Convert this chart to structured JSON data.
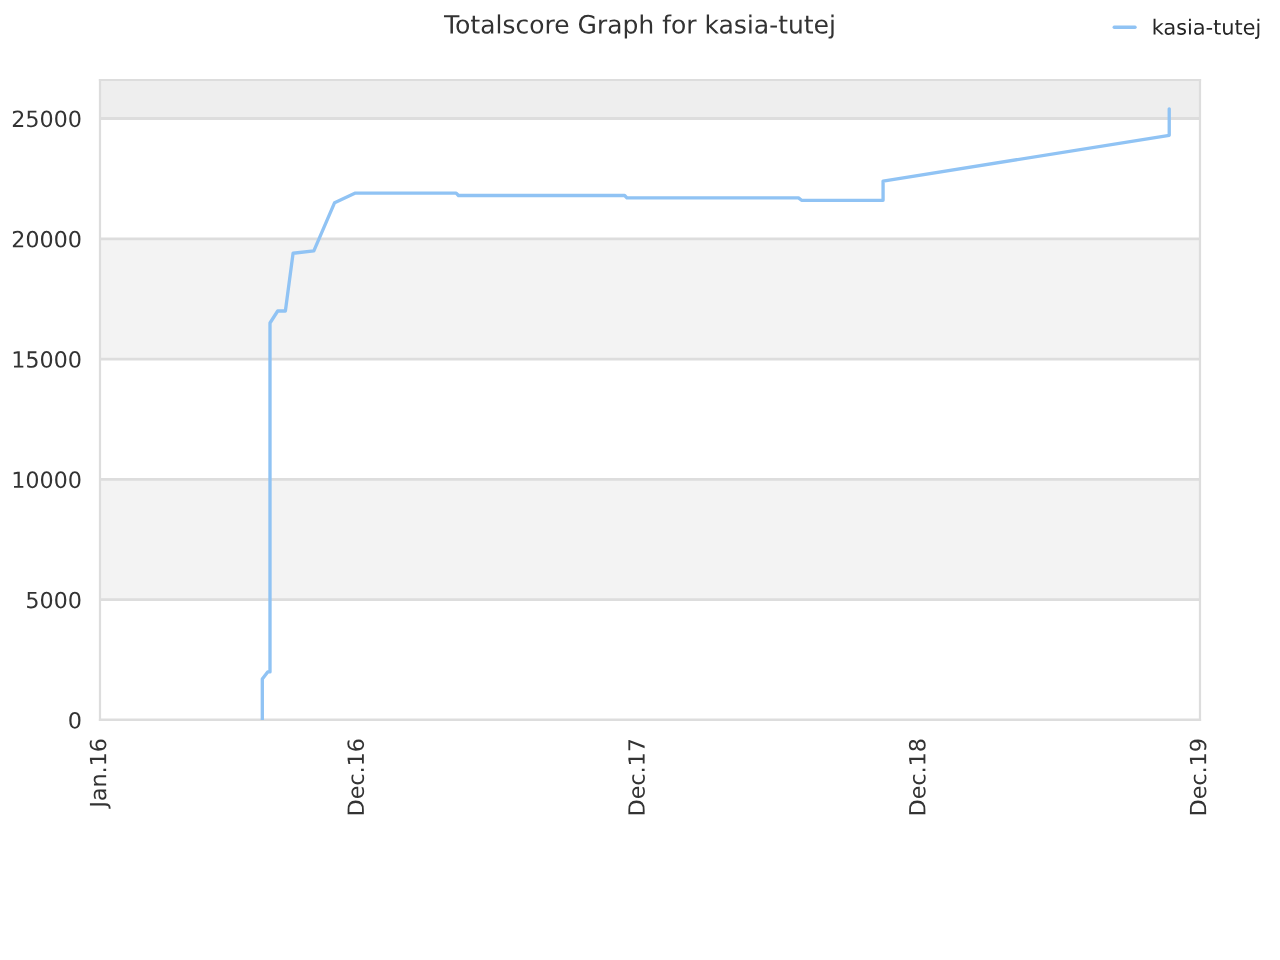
{
  "chart_data": {
    "type": "line",
    "title": "Totalscore Graph for kasia-tutej",
    "x": [
      "2016-07-30",
      "2016-07-30",
      "2016-08-06",
      "2016-08-09",
      "2016-08-09",
      "2016-08-19",
      "2016-08-29",
      "2016-09-08",
      "2016-10-05",
      "2016-11-01",
      "2016-11-28",
      "2017-04-08",
      "2017-04-11",
      "2017-11-13",
      "2017-11-16",
      "2018-06-27",
      "2018-07-01",
      "2018-10-15",
      "2018-10-15",
      "2019-10-22",
      "2019-10-22"
    ],
    "series": [
      {
        "name": "kasia-tutej",
        "color": "#90c3f4",
        "values": [
          0,
          1700,
          2000,
          2000,
          16500,
          17000,
          17000,
          19400,
          19500,
          21500,
          21900,
          21900,
          21800,
          21800,
          21700,
          21700,
          21600,
          21600,
          22400,
          24300,
          25400
        ]
      }
    ],
    "xlim": [
      "2016-01-01",
      "2019-12-01"
    ],
    "xticks": [
      {
        "value": "2016-01-01",
        "label": "Jan.16"
      },
      {
        "value": "2016-12-01",
        "label": "Dec.16"
      },
      {
        "value": "2017-12-01",
        "label": "Dec.17"
      },
      {
        "value": "2018-12-01",
        "label": "Dec.18"
      },
      {
        "value": "2019-12-01",
        "label": "Dec.19"
      }
    ],
    "ylim": [
      0,
      26600
    ],
    "yticks": [
      0,
      5000,
      10000,
      15000,
      20000,
      25000
    ],
    "bands": [
      {
        "axis": "y",
        "from": 5000,
        "to": 10000,
        "color": "#f3f3f3"
      },
      {
        "axis": "y",
        "from": 15000,
        "to": 20000,
        "color": "#f3f3f3"
      },
      {
        "axis": "y",
        "from": 25000,
        "to": 26600,
        "color": "#eeeeee"
      }
    ],
    "grid": "y",
    "legend": "top right",
    "marker": "none",
    "line_style": "solid"
  }
}
